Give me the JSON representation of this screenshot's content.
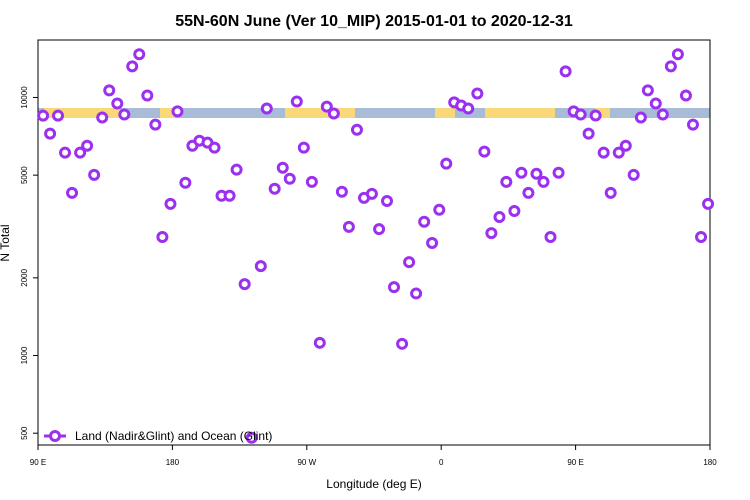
{
  "chart_data": {
    "type": "scatter",
    "title": "55N-60N June (Ver 10_MIP)   2015-01-01 to 2020-12-31",
    "x_label": "Longitude (deg E)",
    "y_label": "N Total",
    "xlim": [
      90,
      540
    ],
    "xticks": [
      {
        "value": 90,
        "label": "90 E"
      },
      {
        "value": 180,
        "label": "180"
      },
      {
        "value": 270,
        "label": "90 W"
      },
      {
        "value": 360,
        "label": "0"
      },
      {
        "value": 450,
        "label": "90 E"
      },
      {
        "value": 540,
        "label": "180"
      }
    ],
    "ylim": [
      450,
      16700
    ],
    "yscale": "log",
    "yticks": [
      500,
      1000,
      2000,
      5000,
      10000
    ],
    "legend": "lower left",
    "series": [
      {
        "name": "Land (Nadir&Glint) and Ocean (Glint)",
        "color": "#9b30f0",
        "x": [
          93.4,
          98.1,
          103.4,
          108.1,
          112.8,
          118.2,
          122.9,
          127.6,
          133,
          137.7,
          143.1,
          147.8,
          153.1,
          157.8,
          163.2,
          168.6,
          173.3,
          178.7,
          183.4,
          188.7,
          193.4,
          198.1,
          203.5,
          208.2,
          212.9,
          218.3,
          223,
          228.4,
          233.1,
          239.2,
          243.2,
          248.5,
          253.9,
          258.6,
          263.3,
          268,
          273.4,
          278.7,
          283.4,
          288.1,
          293.5,
          298.2,
          303.6,
          308.3,
          313.6,
          318.4,
          323.7,
          328.4,
          333.8,
          338.5,
          343.2,
          348.6,
          353.9,
          358.7,
          363.4,
          368.7,
          373.4,
          378.1,
          384.2,
          388.9,
          393.6,
          399,
          403.6,
          409,
          413.7,
          418.4,
          423.8,
          428.5,
          433.2,
          438.6,
          443.3,
          448.7,
          453.4,
          458.7,
          463.4,
          468.8,
          473.5,
          478.9,
          483.6,
          488.9,
          493.7,
          498.4,
          503.7,
          508.4,
          513.8,
          518.5,
          523.9,
          528.6,
          534,
          538.7
        ],
        "values": [
          8500,
          7240,
          8500,
          6110,
          4270,
          6110,
          6500,
          5010,
          8360,
          10650,
          9480,
          8590,
          13200,
          14700,
          10180,
          7850,
          2880,
          3870,
          8830,
          4670,
          6500,
          6800,
          6680,
          6390,
          4160,
          4160,
          5250,
          1890,
          480,
          2220,
          9060,
          4430,
          5340,
          4840,
          9650,
          6390,
          4710,
          1120,
          9220,
          8670,
          4310,
          3150,
          7500,
          4080,
          4230,
          3090,
          3970,
          1840,
          1110,
          2300,
          1740,
          3300,
          2730,
          3670,
          5540,
          9570,
          9310,
          9060,
          10360,
          6170,
          2980,
          3440,
          4710,
          3630,
          5110,
          4270,
          5060,
          4710,
          2880,
          5110,
          12620,
          8830,
          8590,
          7240,
          8510,
          6110,
          4270,
          6110,
          6500,
          5010,
          8360,
          10650,
          9480,
          8590,
          13200,
          14700,
          10180,
          7850,
          2880,
          3870
        ]
      }
    ]
  }
}
